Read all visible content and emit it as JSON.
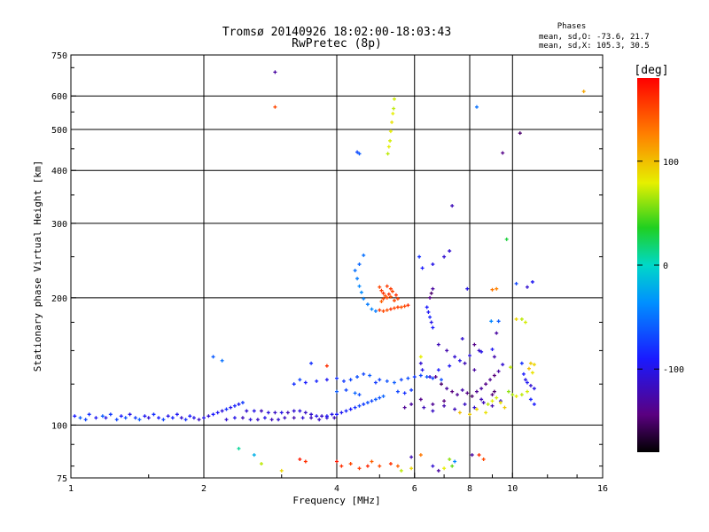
{
  "chart_data": {
    "type": "scatter",
    "title_line1": "Tromsø 20140926 18:02:00-18:03:43",
    "title_line2": "RwPretec (8p)",
    "info": {
      "title": "Phases",
      "line1": "mean, sd,O: -73.6, 21.7",
      "line2": "mean, sd,X: 105.3, 30.5"
    },
    "xlabel": "Frequency [MHz]",
    "ylabel": "Stationary phase Virtual Height [km]",
    "xscale": "log",
    "yscale": "log",
    "xlim": [
      1,
      16
    ],
    "ylim": [
      75,
      750
    ],
    "x_ticks": [
      1,
      2,
      4,
      6,
      8,
      10,
      16
    ],
    "x_tick_labels": [
      "1",
      "2",
      "4",
      "6",
      "8",
      "10",
      "16"
    ],
    "x_grid": [
      2,
      4,
      6,
      8,
      10
    ],
    "y_ticks": [
      75,
      100,
      200,
      300,
      400,
      500,
      600,
      750
    ],
    "y_tick_labels": [
      "75",
      "100",
      "200",
      "300",
      "400",
      "500",
      "600",
      "750"
    ],
    "y_grid": [
      100,
      200,
      300,
      400,
      500,
      600
    ],
    "grid": true,
    "colorbar": {
      "label": "[deg]",
      "min": -180,
      "max": 180,
      "ticks": [
        100,
        0,
        -100
      ],
      "tick_labels": [
        "100",
        "0",
        "-100"
      ],
      "colormap": "rainbow (black-purple-blue-cyan-green-yellow-orange-red)"
    },
    "points": [
      [
        1.02,
        105,
        -90
      ],
      [
        1.05,
        104,
        -60
      ],
      [
        1.08,
        103,
        -70
      ],
      [
        1.1,
        106,
        -80
      ],
      [
        1.14,
        104,
        -95
      ],
      [
        1.18,
        105,
        -60
      ],
      [
        1.2,
        104,
        -100
      ],
      [
        1.23,
        106,
        -75
      ],
      [
        1.27,
        103,
        -70
      ],
      [
        1.3,
        105,
        -90
      ],
      [
        1.33,
        104,
        -65
      ],
      [
        1.36,
        106,
        -100
      ],
      [
        1.4,
        104,
        -75
      ],
      [
        1.43,
        103,
        -60
      ],
      [
        1.47,
        105,
        -95
      ],
      [
        1.5,
        104,
        -110
      ],
      [
        1.54,
        106,
        -80
      ],
      [
        1.58,
        104,
        -90
      ],
      [
        1.62,
        103,
        -70
      ],
      [
        1.66,
        105,
        -100
      ],
      [
        1.7,
        104,
        -85
      ],
      [
        1.74,
        106,
        -95
      ],
      [
        1.78,
        104,
        -110
      ],
      [
        1.82,
        103,
        -80
      ],
      [
        1.86,
        105,
        -90
      ],
      [
        1.9,
        104,
        -100
      ],
      [
        1.95,
        103,
        -115
      ],
      [
        2.0,
        104,
        -100
      ],
      [
        2.05,
        105,
        -110
      ],
      [
        2.1,
        106,
        -90
      ],
      [
        2.15,
        107,
        -95
      ],
      [
        2.2,
        108,
        -105
      ],
      [
        2.25,
        109,
        -80
      ],
      [
        2.3,
        110,
        -100
      ],
      [
        2.35,
        111,
        -85
      ],
      [
        2.4,
        112,
        -95
      ],
      [
        2.45,
        113,
        -75
      ],
      [
        2.25,
        103,
        -110
      ],
      [
        2.35,
        104,
        -100
      ],
      [
        2.45,
        104,
        -120
      ],
      [
        2.55,
        103,
        -105
      ],
      [
        2.65,
        103,
        -115
      ],
      [
        2.75,
        104,
        -100
      ],
      [
        2.85,
        103,
        -120
      ],
      [
        2.95,
        103,
        -110
      ],
      [
        3.05,
        104,
        -115
      ],
      [
        3.2,
        104,
        -125
      ],
      [
        3.35,
        104,
        -110
      ],
      [
        3.5,
        104,
        -120
      ],
      [
        3.65,
        103,
        -115
      ],
      [
        3.8,
        104,
        -110
      ],
      [
        3.95,
        104,
        -120
      ],
      [
        2.5,
        108,
        -110
      ],
      [
        2.6,
        108,
        -100
      ],
      [
        2.7,
        108,
        -120
      ],
      [
        2.8,
        107,
        -105
      ],
      [
        2.9,
        107,
        -115
      ],
      [
        3.0,
        107,
        -100
      ],
      [
        3.1,
        107,
        -120
      ],
      [
        3.2,
        108,
        -110
      ],
      [
        3.3,
        108,
        -105
      ],
      [
        3.4,
        107,
        -115
      ],
      [
        3.5,
        106,
        -110
      ],
      [
        3.6,
        105,
        -100
      ],
      [
        3.7,
        105,
        -115
      ],
      [
        3.8,
        105,
        -95
      ],
      [
        3.9,
        106,
        -100
      ],
      [
        4.0,
        106,
        -90
      ],
      [
        4.1,
        107,
        -95
      ],
      [
        4.2,
        108,
        -85
      ],
      [
        4.3,
        109,
        -90
      ],
      [
        4.4,
        110,
        -80
      ],
      [
        4.5,
        111,
        -70
      ],
      [
        4.6,
        112,
        -75
      ],
      [
        4.7,
        113,
        -65
      ],
      [
        4.8,
        114,
        -70
      ],
      [
        4.9,
        115,
        -60
      ],
      [
        5.0,
        116,
        -65
      ],
      [
        5.1,
        117,
        -55
      ],
      [
        3.2,
        125,
        -80
      ],
      [
        3.4,
        126,
        -90
      ],
      [
        3.6,
        127,
        -85
      ],
      [
        3.8,
        128,
        -95
      ],
      [
        4.0,
        129,
        -80
      ],
      [
        4.15,
        127,
        -75
      ],
      [
        4.3,
        128,
        -70
      ],
      [
        4.45,
        130,
        -65
      ],
      [
        4.6,
        132,
        -70
      ],
      [
        4.75,
        131,
        -60
      ],
      [
        4.9,
        126,
        -75
      ],
      [
        5.0,
        128,
        -70
      ],
      [
        5.2,
        127,
        -65
      ],
      [
        5.4,
        126,
        -60
      ],
      [
        5.6,
        128,
        -70
      ],
      [
        5.8,
        129,
        -65
      ],
      [
        6.0,
        130,
        -75
      ],
      [
        6.2,
        131,
        -70
      ],
      [
        6.4,
        130,
        -60
      ],
      [
        6.6,
        129,
        -70
      ],
      [
        6.9,
        128,
        -65
      ],
      [
        4.0,
        120,
        -60
      ],
      [
        4.2,
        121,
        -70
      ],
      [
        4.4,
        119,
        -55
      ],
      [
        4.5,
        118,
        -65
      ],
      [
        5.5,
        120,
        -70
      ],
      [
        5.7,
        119,
        -80
      ],
      [
        5.9,
        121,
        -75
      ],
      [
        4.4,
        232,
        -50
      ],
      [
        4.45,
        222,
        -45
      ],
      [
        4.5,
        213,
        -40
      ],
      [
        4.55,
        206,
        -38
      ],
      [
        4.6,
        199,
        -42
      ],
      [
        4.7,
        193,
        -45
      ],
      [
        4.8,
        188,
        -40
      ],
      [
        4.9,
        186,
        -45
      ],
      [
        4.6,
        252,
        -50
      ],
      [
        4.5,
        240,
        -55
      ],
      [
        5.0,
        212,
        150
      ],
      [
        5.05,
        208,
        155
      ],
      [
        5.1,
        205,
        160
      ],
      [
        5.15,
        202,
        145
      ],
      [
        5.2,
        200,
        150
      ],
      [
        5.25,
        204,
        160
      ],
      [
        5.3,
        210,
        155
      ],
      [
        5.35,
        207,
        150
      ],
      [
        5.05,
        196,
        140
      ],
      [
        5.1,
        199,
        150
      ],
      [
        5.2,
        213,
        155
      ],
      [
        5.3,
        201,
        145
      ],
      [
        5.4,
        197,
        150
      ],
      [
        5.45,
        203,
        160
      ],
      [
        5.5,
        199,
        150
      ],
      [
        5.0,
        187,
        155
      ],
      [
        5.1,
        186,
        150
      ],
      [
        5.2,
        187,
        145
      ],
      [
        5.3,
        188,
        160
      ],
      [
        5.4,
        189,
        150
      ],
      [
        5.5,
        190,
        155
      ],
      [
        5.6,
        190,
        145
      ],
      [
        5.7,
        191,
        150
      ],
      [
        5.8,
        192,
        160
      ],
      [
        5.22,
        438,
        70
      ],
      [
        5.25,
        455,
        80
      ],
      [
        5.28,
        470,
        75
      ],
      [
        5.3,
        495,
        80
      ],
      [
        5.33,
        520,
        85
      ],
      [
        5.36,
        545,
        80
      ],
      [
        5.38,
        560,
        70
      ],
      [
        5.4,
        590,
        75
      ],
      [
        4.45,
        442,
        -70
      ],
      [
        4.5,
        438,
        -60
      ],
      [
        6.15,
        250,
        -80
      ],
      [
        6.25,
        235,
        -90
      ],
      [
        6.6,
        240,
        -100
      ],
      [
        7.0,
        250,
        -110
      ],
      [
        6.4,
        190,
        -90
      ],
      [
        6.45,
        185,
        -95
      ],
      [
        6.5,
        180,
        -85
      ],
      [
        6.55,
        175,
        -100
      ],
      [
        6.6,
        170,
        -90
      ],
      [
        6.5,
        200,
        -140
      ],
      [
        6.55,
        205,
        -150
      ],
      [
        6.6,
        210,
        -130
      ],
      [
        6.7,
        130,
        -140
      ],
      [
        6.9,
        125,
        -150
      ],
      [
        7.1,
        122,
        -130
      ],
      [
        7.3,
        120,
        -145
      ],
      [
        7.5,
        118,
        -135
      ],
      [
        7.7,
        121,
        -125
      ],
      [
        7.9,
        119,
        -140
      ],
      [
        8.1,
        117,
        -150
      ],
      [
        8.3,
        120,
        -135
      ],
      [
        8.5,
        122,
        -130
      ],
      [
        8.7,
        125,
        -140
      ],
      [
        8.9,
        128,
        -135
      ],
      [
        9.1,
        131,
        -145
      ],
      [
        9.3,
        134,
        -130
      ],
      [
        6.8,
        155,
        -120
      ],
      [
        7.1,
        150,
        -125
      ],
      [
        7.4,
        145,
        -110
      ],
      [
        7.8,
        140,
        -120
      ],
      [
        8.2,
        135,
        -130
      ],
      [
        6.5,
        130,
        -100
      ],
      [
        6.8,
        135,
        -90
      ],
      [
        7.2,
        138,
        -95
      ],
      [
        7.6,
        142,
        -100
      ],
      [
        8.0,
        146,
        -105
      ],
      [
        8.5,
        149,
        -100
      ],
      [
        9.0,
        151,
        -95
      ],
      [
        6.3,
        110,
        -120
      ],
      [
        6.6,
        108,
        -115
      ],
      [
        7.0,
        111,
        -125
      ],
      [
        7.4,
        109,
        -120
      ],
      [
        7.8,
        112,
        -115
      ],
      [
        8.2,
        110,
        -110
      ],
      [
        8.6,
        113,
        -120
      ],
      [
        9.0,
        111,
        -125
      ],
      [
        9.4,
        114,
        -115
      ],
      [
        6.2,
        115,
        -140
      ],
      [
        6.6,
        112,
        -135
      ],
      [
        7.0,
        114,
        -145
      ],
      [
        5.9,
        112,
        -130
      ],
      [
        5.7,
        110,
        -135
      ],
      [
        8.8,
        112,
        70
      ],
      [
        9.0,
        114,
        80
      ],
      [
        9.2,
        116,
        75
      ],
      [
        9.4,
        113,
        85
      ],
      [
        8.3,
        109,
        90
      ],
      [
        8.7,
        107,
        85
      ],
      [
        7.6,
        107,
        100
      ],
      [
        8.0,
        106,
        95
      ],
      [
        9.6,
        110,
        95
      ],
      [
        10.2,
        117,
        80
      ],
      [
        10.5,
        118,
        70
      ],
      [
        10.8,
        120,
        75
      ],
      [
        8.95,
        176,
        -40
      ],
      [
        9.3,
        176,
        -60
      ],
      [
        9.0,
        209,
        130
      ],
      [
        9.2,
        210,
        125
      ],
      [
        10.5,
        178,
        70
      ],
      [
        10.7,
        175,
        75
      ],
      [
        10.2,
        178,
        90
      ],
      [
        10.5,
        140,
        -80
      ],
      [
        10.6,
        132,
        -90
      ],
      [
        10.7,
        128,
        -100
      ],
      [
        10.8,
        126,
        -95
      ],
      [
        11.0,
        124,
        -110
      ],
      [
        11.2,
        122,
        -100
      ],
      [
        11.0,
        115,
        -85
      ],
      [
        11.2,
        112,
        -90
      ],
      [
        11.0,
        140,
        95
      ],
      [
        11.2,
        139,
        90
      ],
      [
        11.1,
        133,
        85
      ],
      [
        10.9,
        136,
        100
      ],
      [
        10.8,
        212,
        -110
      ],
      [
        11.1,
        218,
        -95
      ],
      [
        10.2,
        216,
        -70
      ],
      [
        7.9,
        210,
        -100
      ],
      [
        7.7,
        160,
        -110
      ],
      [
        9.2,
        165,
        -130
      ],
      [
        9.1,
        120,
        -150
      ],
      [
        9.0,
        118,
        -145
      ],
      [
        8.5,
        115,
        -120
      ],
      [
        9.8,
        120,
        60
      ],
      [
        10.0,
        118,
        65
      ],
      [
        8.1,
        85,
        -130
      ],
      [
        8.6,
        83,
        150
      ],
      [
        8.4,
        85,
        160
      ],
      [
        7.2,
        83,
        60
      ],
      [
        7.3,
        80,
        50
      ],
      [
        7.4,
        82,
        -40
      ],
      [
        6.6,
        80,
        -110
      ],
      [
        6.8,
        78,
        -130
      ],
      [
        7.0,
        79,
        80
      ],
      [
        6.2,
        85,
        130
      ],
      [
        5.9,
        84,
        -120
      ],
      [
        5.5,
        80,
        140
      ],
      [
        5.3,
        81,
        160
      ],
      [
        5.6,
        78,
        70
      ],
      [
        5.9,
        79,
        90
      ],
      [
        4.0,
        82,
        170
      ],
      [
        4.1,
        80,
        160
      ],
      [
        4.3,
        81,
        150
      ],
      [
        4.5,
        79,
        155
      ],
      [
        4.7,
        80,
        165
      ],
      [
        4.8,
        82,
        140
      ],
      [
        5.0,
        80,
        150
      ],
      [
        3.3,
        83,
        170
      ],
      [
        3.4,
        82,
        160
      ],
      [
        2.6,
        85,
        -20
      ],
      [
        2.7,
        81,
        70
      ],
      [
        3.0,
        78,
        90
      ],
      [
        2.4,
        88,
        10
      ],
      [
        2.1,
        145,
        -60
      ],
      [
        2.2,
        142,
        -50
      ],
      [
        2.9,
        683,
        -130
      ],
      [
        2.9,
        565,
        150
      ],
      [
        3.8,
        138,
        160
      ],
      [
        3.5,
        140,
        -80
      ],
      [
        3.3,
        128,
        -70
      ],
      [
        6.2,
        145,
        80
      ],
      [
        6.2,
        140,
        -110
      ],
      [
        6.25,
        135,
        -100
      ],
      [
        7.3,
        330,
        -120
      ],
      [
        7.2,
        258,
        -110
      ],
      [
        8.3,
        565,
        -50
      ],
      [
        9.5,
        440,
        -140
      ],
      [
        10.4,
        490,
        -150
      ],
      [
        9.7,
        275,
        30
      ],
      [
        8.2,
        155,
        -140
      ],
      [
        8.4,
        150,
        -115
      ],
      [
        9.1,
        145,
        -125
      ],
      [
        9.5,
        139,
        -110
      ],
      [
        9.9,
        137,
        70
      ],
      [
        14.5,
        615,
        110
      ]
    ]
  }
}
